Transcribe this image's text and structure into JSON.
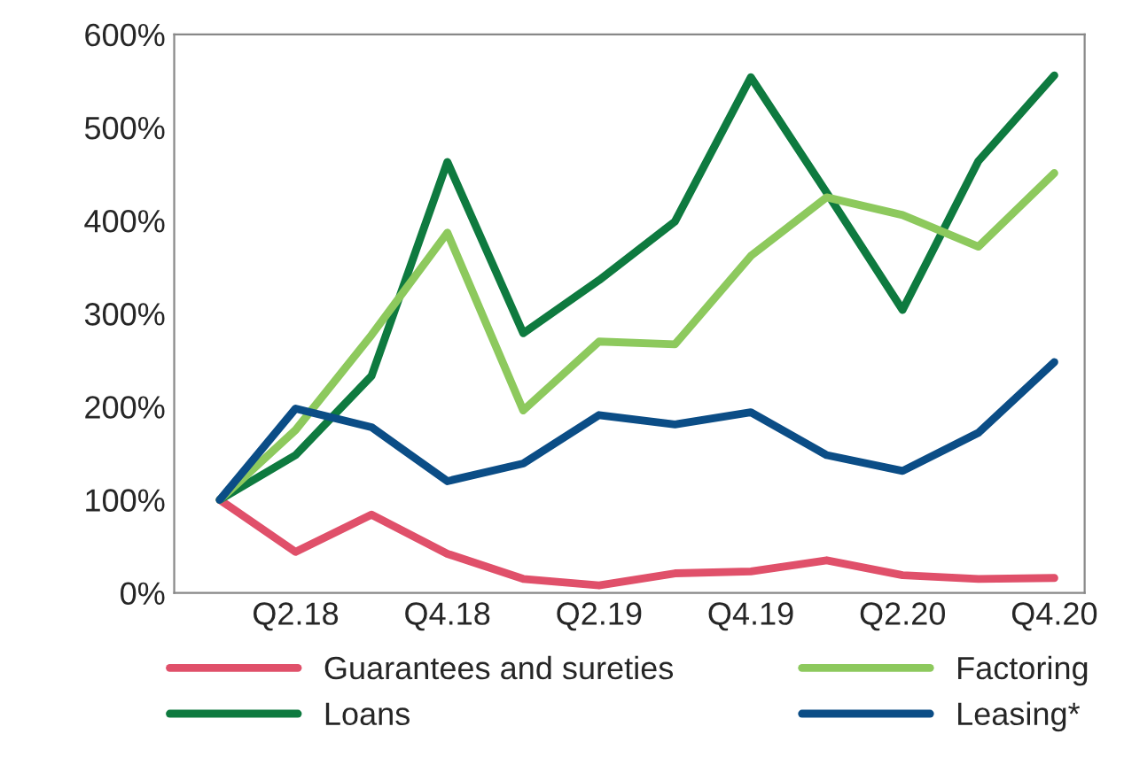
{
  "chart_data": {
    "type": "line",
    "categories": [
      null,
      "Q2.18",
      null,
      "Q4.18",
      null,
      "Q2.19",
      null,
      "Q4.19",
      null,
      "Q2.20",
      null,
      "Q4.20"
    ],
    "series": [
      {
        "name": "Guarantees and sureties",
        "color": "#e0506a",
        "values": [
          100,
          44,
          84,
          42,
          15,
          8,
          21,
          23,
          35,
          19,
          15,
          16
        ]
      },
      {
        "name": "Loans",
        "color": "#0e7a3f",
        "values": [
          100,
          148,
          233,
          463,
          279,
          336,
          399,
          554,
          430,
          304,
          464,
          556
        ]
      },
      {
        "name": "Factoring",
        "color": "#8dc95d",
        "values": [
          100,
          175,
          277,
          387,
          196,
          270,
          267,
          362,
          425,
          406,
          372,
          451
        ]
      },
      {
        "name": "Leasing*",
        "color": "#0b4d86",
        "values": [
          100,
          198,
          178,
          120,
          139,
          191,
          181,
          194,
          148,
          131,
          172,
          248
        ]
      }
    ],
    "ylim": [
      0,
      600
    ],
    "yticks": [
      {
        "value": 0,
        "label": "0%"
      },
      {
        "value": 100,
        "label": "100%"
      },
      {
        "value": 200,
        "label": "200%"
      },
      {
        "value": 300,
        "label": "300%"
      },
      {
        "value": 400,
        "label": "400%"
      },
      {
        "value": 500,
        "label": "500%"
      },
      {
        "value": 600,
        "label": "600%"
      }
    ],
    "grid": false,
    "legend": "bottom",
    "marker": "none",
    "line_style": "solid"
  }
}
